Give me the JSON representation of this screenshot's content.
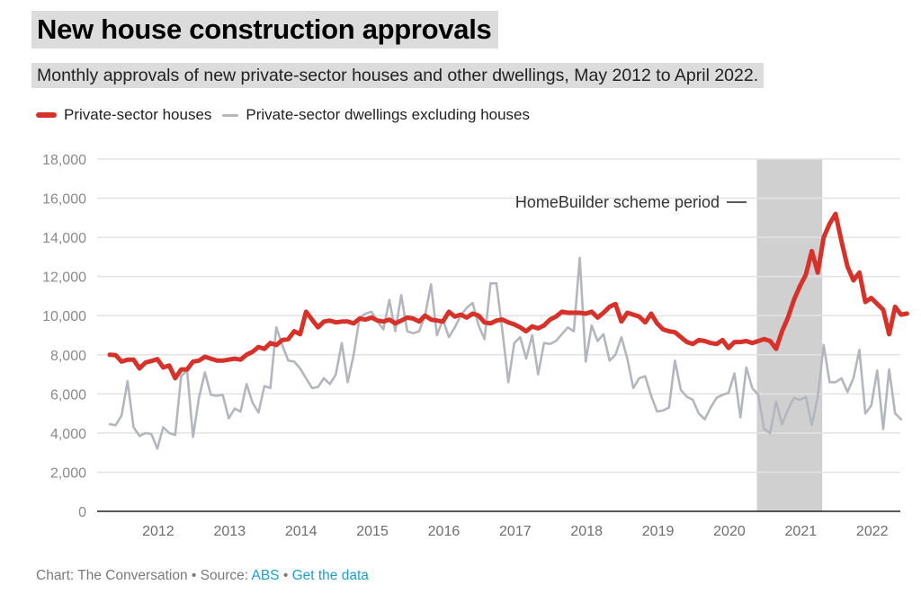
{
  "header": {
    "title": "New house construction approvals",
    "subtitle": "Monthly approvals of new private-sector houses and other dwellings, May 2012 to April 2022."
  },
  "legend": [
    {
      "label": "Private-sector houses",
      "color": "#d7322a"
    },
    {
      "label": "Private-sector dwellings excluding houses",
      "color": "#b3b7bd"
    }
  ],
  "footer": {
    "prefix": "Chart: The Conversation • Source: ",
    "source_link": "ABS",
    "separator": " • ",
    "data_link": "Get the data"
  },
  "chart_data": {
    "type": "line",
    "title": "New house construction approvals",
    "xlabel": "",
    "ylabel": "",
    "ylim": [
      0,
      18000
    ],
    "yticks": [
      0,
      2000,
      4000,
      6000,
      8000,
      10000,
      12000,
      14000,
      16000,
      18000
    ],
    "ytick_labels": [
      "0",
      "2,000",
      "4,000",
      "6,000",
      "8,000",
      "10,000",
      "12,000",
      "14,000",
      "16,000",
      "18,000"
    ],
    "xtick_labels": [
      "2012",
      "2013",
      "2014",
      "2015",
      "2016",
      "2017",
      "2018",
      "2019",
      "2020",
      "2021",
      "2022"
    ],
    "xtick_month_index": [
      8,
      20,
      32,
      44,
      56,
      68,
      80,
      92,
      104,
      116,
      128
    ],
    "grid": true,
    "legend_position": "top-left",
    "annotation": {
      "label": "HomeBuilder scheme period",
      "shaded_from_month_index": 109,
      "shaded_to_month_index": 119
    },
    "series": [
      {
        "name": "Private-sector houses",
        "color": "#d7322a",
        "values": [
          8000,
          7980,
          7650,
          7750,
          7750,
          7300,
          7600,
          7680,
          7780,
          7350,
          7450,
          6800,
          7250,
          7250,
          7650,
          7700,
          7900,
          7800,
          7700,
          7700,
          7750,
          7800,
          7750,
          8000,
          8150,
          8400,
          8300,
          8600,
          8500,
          8750,
          8800,
          9200,
          9050,
          10200,
          9800,
          9400,
          9700,
          9750,
          9650,
          9700,
          9700,
          9600,
          9850,
          9800,
          9900,
          9750,
          9700,
          9800,
          9600,
          9750,
          9900,
          9850,
          9700,
          10000,
          9800,
          9750,
          9700,
          10200,
          9950,
          10050,
          9900,
          10100,
          10000,
          9650,
          9600,
          9750,
          9800,
          9650,
          9550,
          9400,
          9200,
          9450,
          9350,
          9500,
          9800,
          9950,
          10200,
          10150,
          10150,
          10150,
          10100,
          10200,
          9900,
          10150,
          10450,
          10600,
          9700,
          10150,
          10050,
          9950,
          9650,
          10100,
          9600,
          9300,
          9200,
          9150,
          8900,
          8650,
          8550,
          8750,
          8700,
          8600,
          8550,
          8750,
          8350,
          8650,
          8650,
          8700,
          8600,
          8700,
          8800,
          8700,
          8300,
          9200,
          9900,
          10800,
          11500,
          12100,
          13300,
          12200,
          14000,
          14700,
          15200,
          13800,
          12500,
          11800,
          12200,
          10700,
          10900,
          10600,
          10300,
          9050,
          10450,
          10050,
          10100
        ],
        "note": "approximate monthly values read from chart"
      },
      {
        "name": "Private-sector dwellings excluding houses",
        "color": "#b3b7bd",
        "values": [
          4450,
          4400,
          4900,
          6650,
          4300,
          3850,
          4000,
          3950,
          3200,
          4300,
          4000,
          3900,
          6900,
          7200,
          3800,
          5800,
          7100,
          5950,
          5900,
          5950,
          4750,
          5250,
          5100,
          6500,
          5550,
          5050,
          6400,
          6300,
          9400,
          8500,
          7700,
          7650,
          7300,
          6800,
          6300,
          6350,
          6800,
          6500,
          7000,
          8600,
          6600,
          8000,
          9900,
          10100,
          10200,
          9700,
          9300,
          10800,
          9200,
          11050,
          9200,
          9100,
          9200,
          10000,
          11600,
          9000,
          9800,
          8900,
          9400,
          10000,
          10400,
          10650,
          9500,
          8800,
          11650,
          11650,
          9200,
          6600,
          8600,
          8900,
          7800,
          9000,
          7000,
          8600,
          8550,
          8700,
          9050,
          9400,
          9200,
          12950,
          7650,
          9500,
          8700,
          9050,
          7700,
          8000,
          8900,
          7800,
          6300,
          6800,
          6900,
          5900,
          5100,
          5150,
          5300,
          7700,
          6200,
          5850,
          5700,
          5000,
          4700,
          5300,
          5800,
          5950,
          6050,
          7050,
          4800,
          7350,
          6300,
          5950,
          4200,
          4000,
          5600,
          4450,
          5200,
          5800,
          5700,
          5850,
          4400,
          5850,
          8500,
          6600,
          6600,
          6800,
          6100,
          6800,
          8250,
          5000,
          5400,
          7200,
          4200,
          7250,
          5000,
          4700
        ],
        "note": "approximate monthly values read from chart"
      }
    ]
  }
}
